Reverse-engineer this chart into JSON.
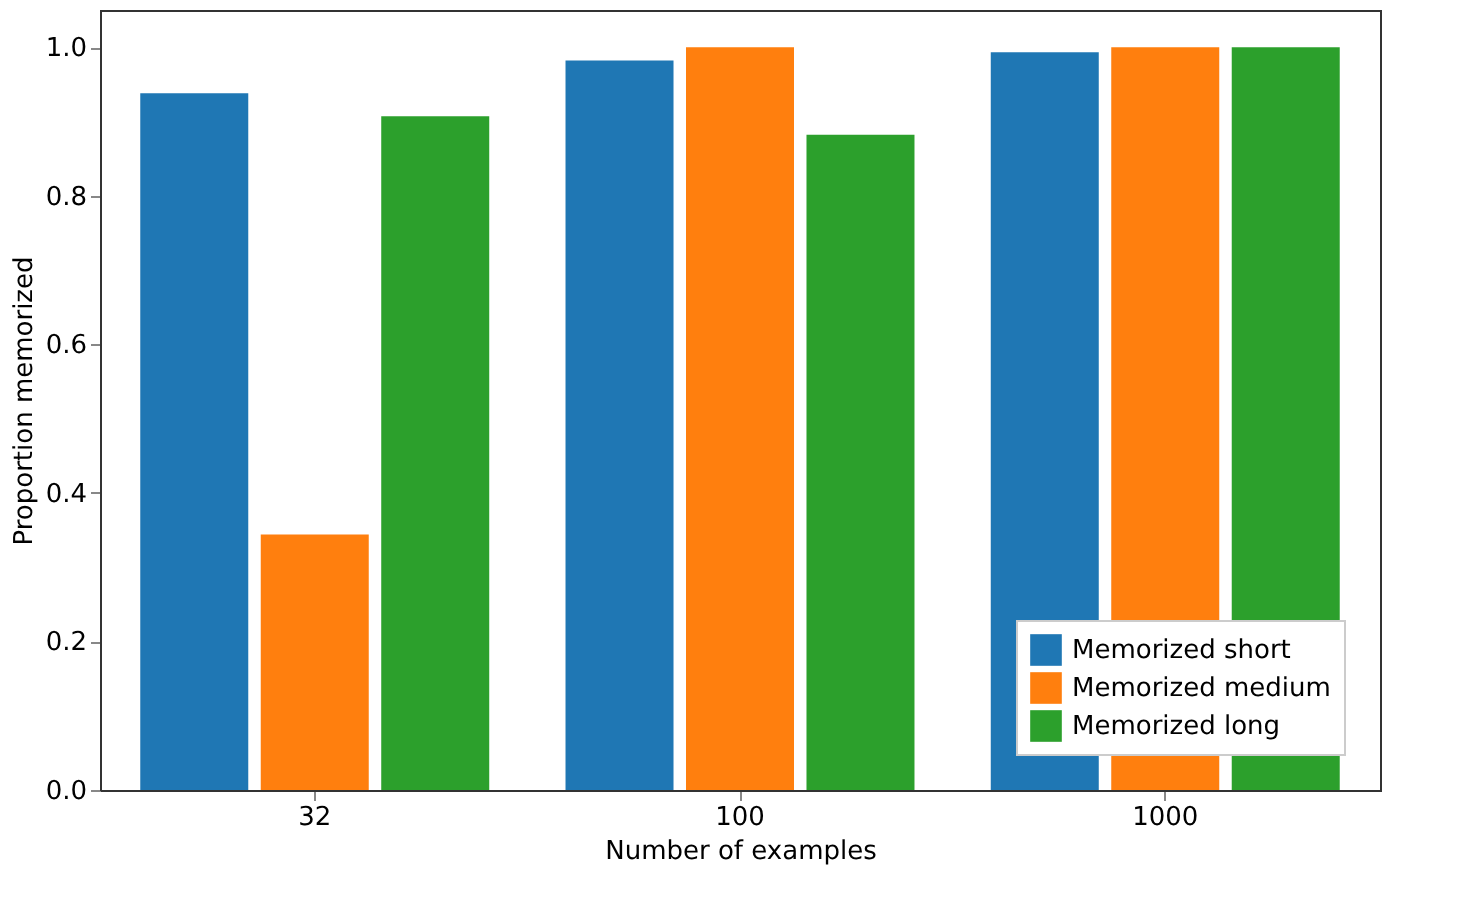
{
  "chart_data": {
    "type": "bar",
    "xlabel": "Number of examples",
    "ylabel": "Proportion memorized",
    "categories": [
      "32",
      "100",
      "1000"
    ],
    "series": [
      {
        "name": "Memorized short",
        "color": "#1f77b4",
        "values": [
          0.938,
          0.982,
          0.993
        ]
      },
      {
        "name": "Memorized medium",
        "color": "#ff7f0e",
        "values": [
          0.344,
          1.0,
          1.0
        ]
      },
      {
        "name": "Memorized long",
        "color": "#2ca02c",
        "values": [
          0.907,
          0.882,
          1.0
        ]
      }
    ],
    "ylim": [
      0,
      1.05
    ],
    "yticks": [
      {
        "value": 0,
        "label": "0.0"
      },
      {
        "value": 0.2,
        "label": "0.2"
      },
      {
        "value": 0.4,
        "label": "0.4"
      },
      {
        "value": 0.6,
        "label": "0.6"
      },
      {
        "value": 0.8,
        "label": "0.8"
      },
      {
        "value": 1.0,
        "label": "1.0"
      }
    ],
    "grid": false,
    "legend": "bottom right"
  }
}
